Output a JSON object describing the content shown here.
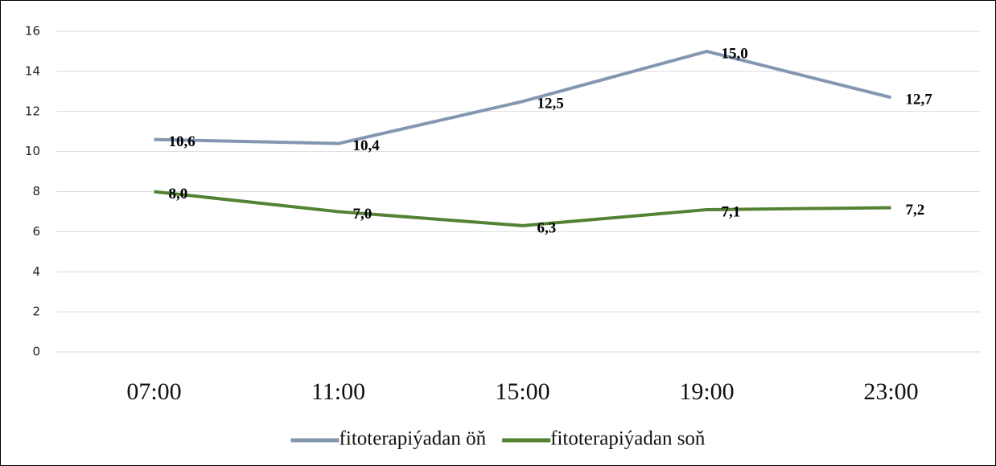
{
  "chart_data": {
    "type": "line",
    "categories": [
      "07:00",
      "11:00",
      "15:00",
      "19:00",
      "23:00"
    ],
    "series": [
      {
        "name": "fitoterapiýadan öň",
        "color": "#8497b0",
        "values": [
          10.6,
          10.4,
          12.5,
          15.0,
          12.7
        ],
        "value_labels": [
          "10,6",
          "10,4",
          "12,5",
          "15,0",
          "12,7"
        ]
      },
      {
        "name": "fitoterapiýadan soň",
        "color": "#548235",
        "values": [
          8.0,
          7.0,
          6.3,
          7.1,
          7.2
        ],
        "value_labels": [
          "8,0",
          "7,0",
          "6,3",
          "7,1",
          "7,2"
        ]
      }
    ],
    "ylim": [
      0,
      16
    ],
    "yticks": [
      0,
      2,
      4,
      6,
      8,
      10,
      12,
      14,
      16
    ],
    "grid": true,
    "legend": "bottom"
  }
}
